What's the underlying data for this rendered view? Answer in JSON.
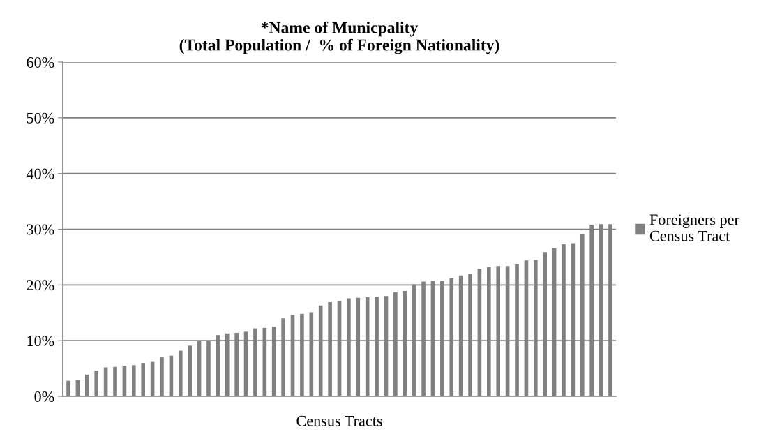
{
  "chart_data": {
    "type": "bar",
    "title": "*Name of Municpality\n(Total Population /  % of Foreign Nationality)",
    "xlabel": "Census Tracts",
    "categories": [
      null,
      null,
      null,
      null,
      null,
      null,
      null,
      null,
      null,
      null,
      null,
      null,
      null,
      null,
      null,
      null,
      null,
      null,
      null,
      null,
      null,
      null,
      null,
      null,
      null,
      null,
      null,
      null,
      null,
      null,
      null,
      null,
      null,
      null,
      null,
      null,
      null,
      null,
      null,
      null,
      null,
      null,
      null,
      null,
      null,
      null,
      null,
      null,
      null,
      null,
      null,
      null,
      null,
      null,
      null,
      null,
      null,
      null,
      null
    ],
    "series": [
      {
        "name": "Foreigners per Census Tract",
        "color": "#808080",
        "values": [
          2.8,
          2.9,
          3.9,
          4.6,
          5.2,
          5.3,
          5.5,
          5.6,
          6.0,
          6.2,
          7.0,
          7.3,
          8.2,
          9.1,
          10.0,
          10.0,
          11.0,
          11.3,
          11.4,
          11.6,
          12.2,
          12.3,
          12.5,
          14.0,
          14.6,
          14.8,
          15.1,
          16.3,
          16.9,
          17.1,
          17.6,
          17.7,
          17.8,
          17.9,
          18.0,
          18.7,
          18.9,
          20.1,
          20.6,
          20.7,
          20.7,
          21.2,
          21.7,
          22.0,
          22.9,
          23.2,
          23.4,
          23.4,
          23.7,
          24.4,
          24.5,
          25.9,
          26.6,
          27.3,
          27.5,
          29.2,
          30.8,
          30.9,
          30.9
        ]
      }
    ],
    "ylim": [
      0,
      60
    ],
    "yticks": [
      {
        "value": 0,
        "label": "0%"
      },
      {
        "value": 10,
        "label": "10%"
      },
      {
        "value": 20,
        "label": "20%"
      },
      {
        "value": 30,
        "label": "30%"
      },
      {
        "value": 40,
        "label": "40%"
      },
      {
        "value": 50,
        "label": "50%"
      },
      {
        "value": 60,
        "label": "60%"
      }
    ],
    "grid": "y",
    "legend": "right"
  }
}
